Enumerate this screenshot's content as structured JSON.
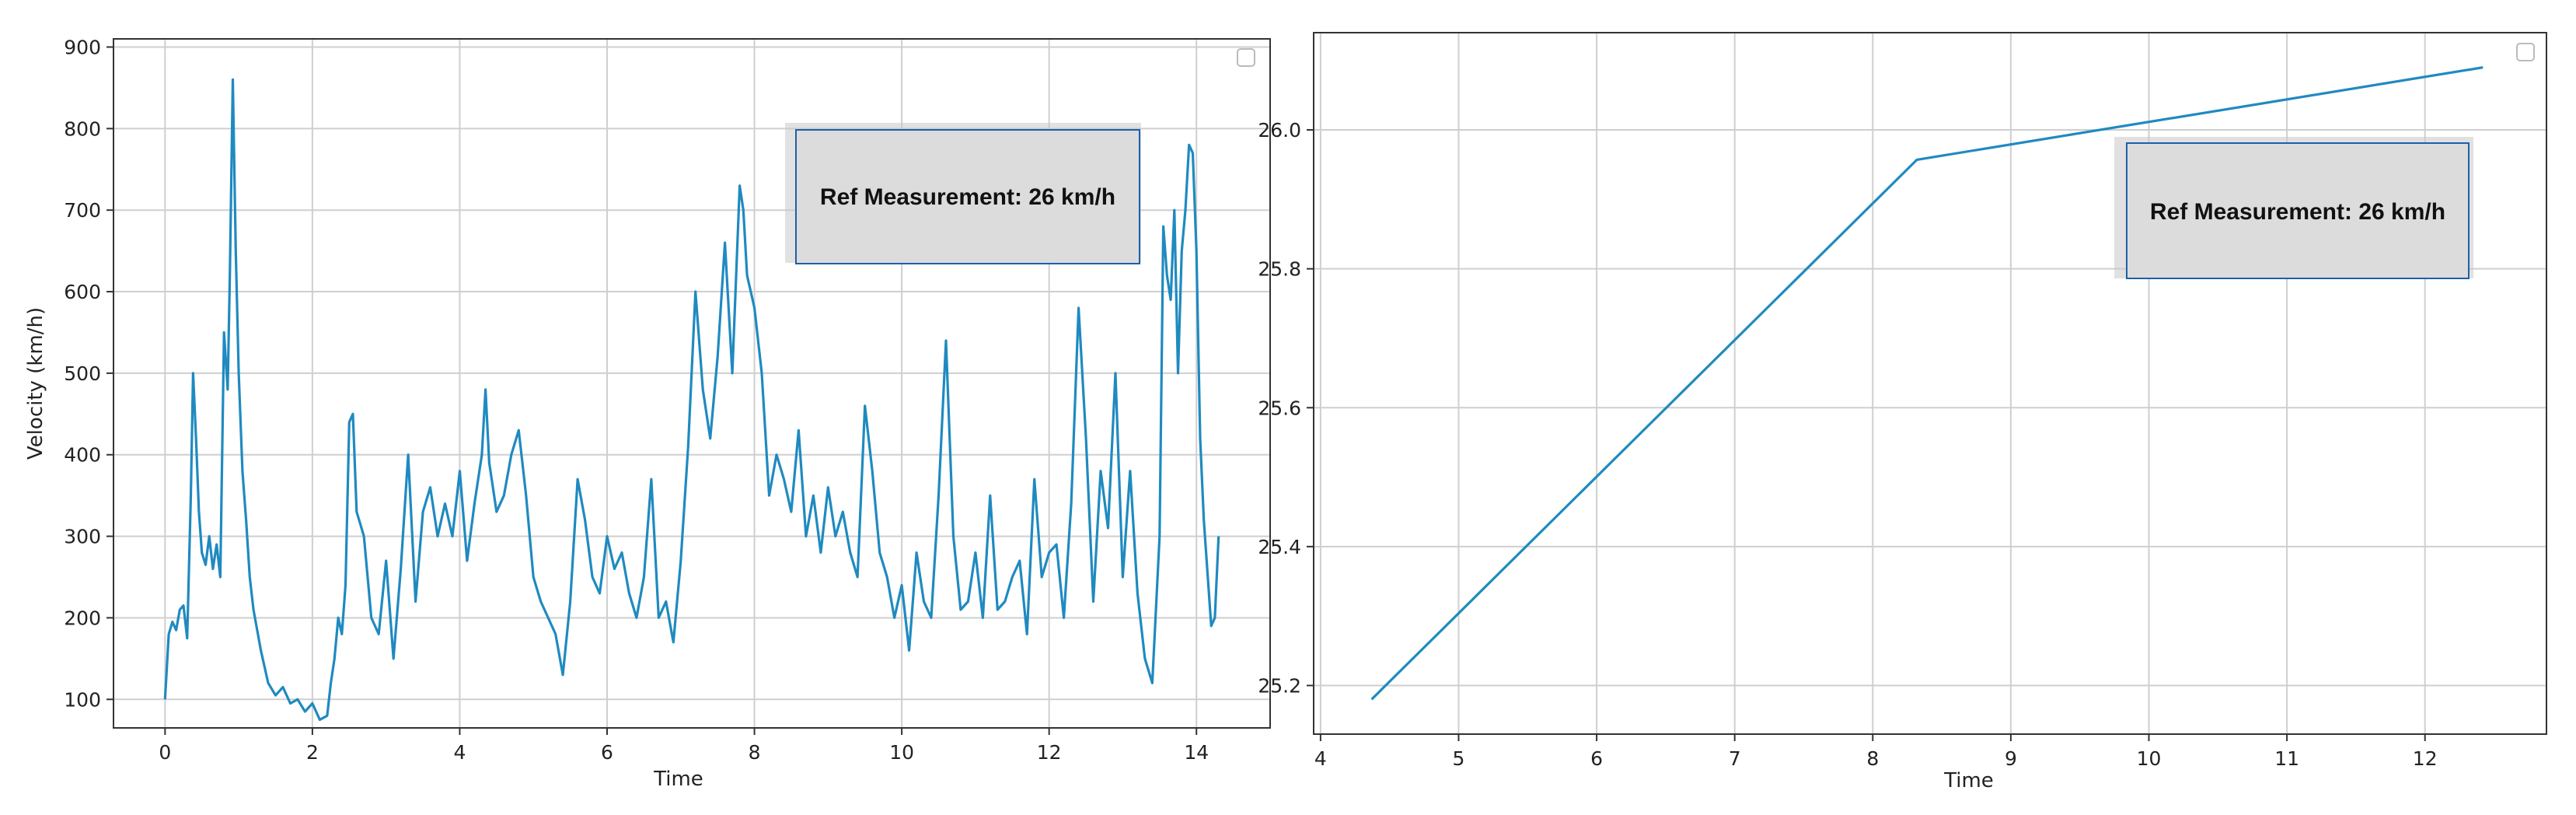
{
  "colors": {
    "series": "#1f8ac0",
    "grid": "#cfcfcf",
    "frame": "#333333",
    "annotation_border": "#1f5fa8",
    "annotation_fill": "#dcdcdc"
  },
  "chart_data": [
    {
      "type": "line",
      "title": "",
      "xlabel": "Time",
      "ylabel": "Velocity (km/h)",
      "xlim": [
        -0.7,
        15.0
      ],
      "ylim": [
        65,
        910
      ],
      "xticks": [
        "0",
        "2",
        "4",
        "6",
        "8",
        "10",
        "12",
        "14"
      ],
      "yticks": [
        "100",
        "200",
        "300",
        "400",
        "500",
        "600",
        "700",
        "800",
        "900"
      ],
      "grid": true,
      "legend": "top-right (empty)",
      "annotation": "Ref Measurement: 26 km/h",
      "series": [
        {
          "x": [
            0.0,
            0.05,
            0.1,
            0.15,
            0.2,
            0.25,
            0.3,
            0.35,
            0.38,
            0.42,
            0.46,
            0.5,
            0.55,
            0.6,
            0.65,
            0.7,
            0.75,
            0.8,
            0.85,
            0.88,
            0.92,
            0.96,
            1.0,
            1.05,
            1.1,
            1.15,
            1.2,
            1.3,
            1.4,
            1.5,
            1.6,
            1.7,
            1.8,
            1.9,
            2.0,
            2.1,
            2.2,
            2.25,
            2.3,
            2.35,
            2.4,
            2.45,
            2.5,
            2.55,
            2.6,
            2.7,
            2.8,
            2.9,
            3.0,
            3.1,
            3.2,
            3.3,
            3.4,
            3.5,
            3.6,
            3.7,
            3.8,
            3.9,
            4.0,
            4.1,
            4.2,
            4.3,
            4.35,
            4.4,
            4.5,
            4.6,
            4.7,
            4.8,
            4.9,
            5.0,
            5.1,
            5.2,
            5.3,
            5.4,
            5.5,
            5.6,
            5.7,
            5.8,
            5.9,
            6.0,
            6.1,
            6.2,
            6.3,
            6.4,
            6.5,
            6.6,
            6.7,
            6.8,
            6.9,
            7.0,
            7.1,
            7.2,
            7.3,
            7.4,
            7.5,
            7.6,
            7.7,
            7.8,
            7.85,
            7.9,
            8.0,
            8.1,
            8.2,
            8.3,
            8.4,
            8.5,
            8.6,
            8.7,
            8.8,
            8.9,
            9.0,
            9.1,
            9.2,
            9.3,
            9.4,
            9.5,
            9.6,
            9.7,
            9.8,
            9.9,
            10.0,
            10.1,
            10.2,
            10.3,
            10.4,
            10.5,
            10.6,
            10.7,
            10.8,
            10.9,
            11.0,
            11.1,
            11.2,
            11.3,
            11.4,
            11.5,
            11.6,
            11.7,
            11.8,
            11.9,
            12.0,
            12.1,
            12.2,
            12.3,
            12.4,
            12.5,
            12.6,
            12.7,
            12.8,
            12.9,
            13.0,
            13.1,
            13.2,
            13.3,
            13.4,
            13.5,
            13.55,
            13.6,
            13.65,
            13.7,
            13.75,
            13.8,
            13.85,
            13.9,
            13.95,
            14.0,
            14.05,
            14.1,
            14.2,
            14.25,
            14.3
          ],
          "y": [
            100,
            180,
            195,
            185,
            210,
            215,
            175,
            350,
            500,
            420,
            330,
            280,
            265,
            300,
            260,
            290,
            250,
            550,
            480,
            620,
            860,
            650,
            500,
            380,
            320,
            250,
            210,
            160,
            120,
            105,
            115,
            95,
            100,
            85,
            95,
            75,
            80,
            120,
            150,
            200,
            180,
            240,
            440,
            450,
            330,
            300,
            200,
            180,
            270,
            150,
            260,
            400,
            220,
            330,
            360,
            300,
            340,
            300,
            380,
            270,
            340,
            400,
            480,
            390,
            330,
            350,
            400,
            430,
            350,
            250,
            220,
            200,
            180,
            130,
            220,
            370,
            320,
            250,
            230,
            300,
            260,
            280,
            230,
            200,
            250,
            370,
            200,
            220,
            170,
            270,
            410,
            600,
            480,
            420,
            520,
            660,
            500,
            730,
            700,
            620,
            580,
            500,
            350,
            400,
            370,
            330,
            430,
            300,
            350,
            280,
            360,
            300,
            330,
            280,
            250,
            460,
            380,
            280,
            250,
            200,
            240,
            160,
            280,
            220,
            200,
            350,
            540,
            300,
            210,
            220,
            280,
            200,
            350,
            210,
            220,
            250,
            270,
            180,
            370,
            250,
            280,
            290,
            200,
            340,
            580,
            420,
            220,
            380,
            310,
            500,
            250,
            380,
            230,
            150,
            120,
            300,
            680,
            620,
            590,
            700,
            500,
            650,
            700,
            780,
            770,
            650,
            420,
            320,
            190,
            200,
            300
          ]
        }
      ]
    },
    {
      "type": "line",
      "title": "",
      "xlabel": "Time",
      "ylabel": "",
      "xlim": [
        3.95,
        12.88
      ],
      "ylim": [
        25.13,
        26.14
      ],
      "xticks": [
        "4",
        "5",
        "6",
        "7",
        "8",
        "9",
        "10",
        "11",
        "12"
      ],
      "yticks": [
        "25.2",
        "25.4",
        "25.6",
        "25.8",
        "26.0"
      ],
      "grid": true,
      "legend": "top-right (empty)",
      "annotation": "Ref Measurement: 26 km/h",
      "series": [
        {
          "x": [
            4.37,
            8.32,
            12.42
          ],
          "y": [
            25.18,
            25.957,
            26.09
          ]
        }
      ]
    }
  ]
}
